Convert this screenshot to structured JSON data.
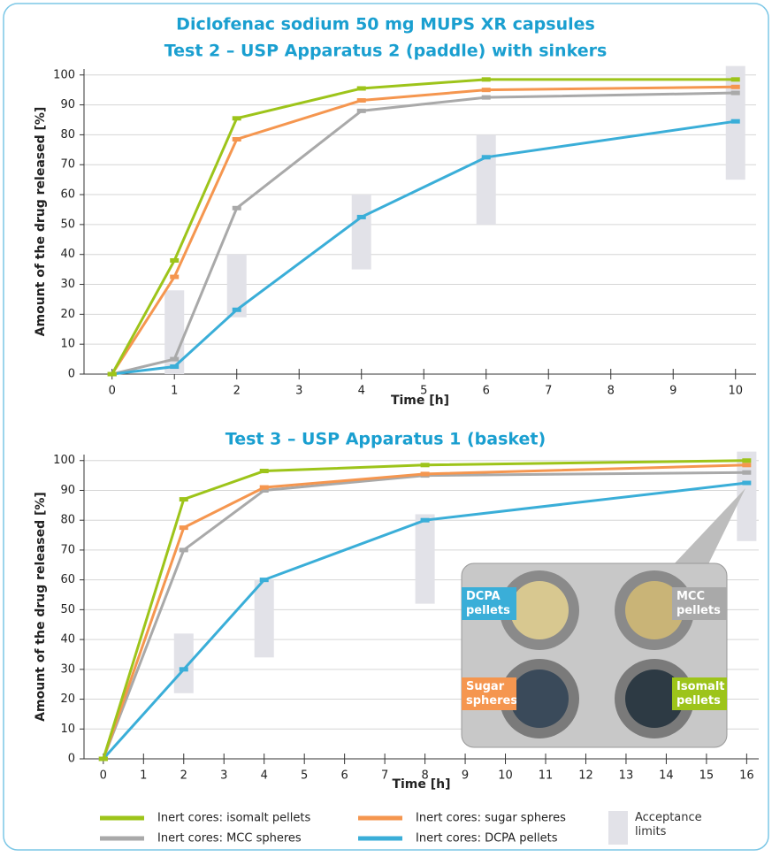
{
  "chart_data": [
    {
      "type": "line",
      "title": "Diclofenac sodium 50 mg MUPS XR capsules",
      "subtitle": "Test 2 – USP Apparatus 2 (paddle) with sinkers",
      "x_label": "Time [h]",
      "y_label": "Amount of the drug released [%]",
      "x": [
        0,
        1,
        2,
        4,
        6,
        10
      ],
      "xlim": [
        -0.45,
        10.33
      ],
      "xticks": [
        0,
        1,
        2,
        3,
        4,
        5,
        6,
        7,
        8,
        9,
        10
      ],
      "ylim": [
        0,
        102
      ],
      "yticks": [
        0,
        10,
        20,
        30,
        40,
        50,
        60,
        70,
        80,
        90,
        100
      ],
      "grid": true,
      "series": [
        {
          "name": "Inert cores: isomalt pellets",
          "color": "#9dc41a",
          "values": [
            0,
            38,
            85.5,
            95.5,
            98.5,
            98.5
          ]
        },
        {
          "name": "Inert cores: sugar spheres",
          "color": "#f5964f",
          "values": [
            0,
            32.5,
            78.5,
            91.5,
            95,
            96
          ]
        },
        {
          "name": "Inert cores: MCC spheres",
          "color": "#a9a9a9",
          "values": [
            0,
            5,
            55.5,
            88,
            92.5,
            94
          ]
        },
        {
          "name": "Inert cores: DCPA pellets",
          "color": "#3aaed8",
          "values": [
            0,
            2.5,
            21.5,
            52.5,
            72.5,
            84.5
          ]
        }
      ],
      "acceptance_limits": {
        "name": "Acceptance limits",
        "color": "#e2e2e8",
        "x": [
          1,
          2,
          4,
          6,
          10
        ],
        "low": [
          0,
          19,
          35,
          50,
          65
        ],
        "high": [
          28,
          40,
          60,
          80,
          103
        ]
      }
    },
    {
      "type": "line",
      "title": "Test 3 – USP Apparatus 1 (basket)",
      "x_label": "Time [h]",
      "y_label": "Amount of the drug released [%]",
      "x": [
        0,
        2,
        4,
        8,
        16
      ],
      "xlim": [
        -0.48,
        16.3
      ],
      "xticks": [
        0,
        1,
        2,
        3,
        4,
        5,
        6,
        7,
        8,
        9,
        10,
        11,
        12,
        13,
        14,
        15,
        16
      ],
      "ylim": [
        0,
        102
      ],
      "yticks": [
        0,
        10,
        20,
        30,
        40,
        50,
        60,
        70,
        80,
        90,
        100
      ],
      "grid": true,
      "series": [
        {
          "values": [
            0,
            87,
            96.5,
            98.5,
            100
          ]
        },
        {
          "values": [
            0,
            77.5,
            91,
            95.5,
            98.5
          ]
        },
        {
          "values": [
            0,
            70,
            90,
            95,
            96
          ]
        },
        {
          "values": [
            0,
            30,
            60,
            80,
            92.5
          ]
        }
      ],
      "acceptance_limits": {
        "x": [
          2,
          4,
          8,
          16
        ],
        "low": [
          22,
          34,
          52,
          73
        ],
        "high": [
          42,
          60,
          82,
          103
        ]
      }
    }
  ],
  "inset": {
    "labels": [
      "DCPA pellets",
      "MCC pellets",
      "Sugar spheres",
      "Isomalt pellets"
    ]
  }
}
